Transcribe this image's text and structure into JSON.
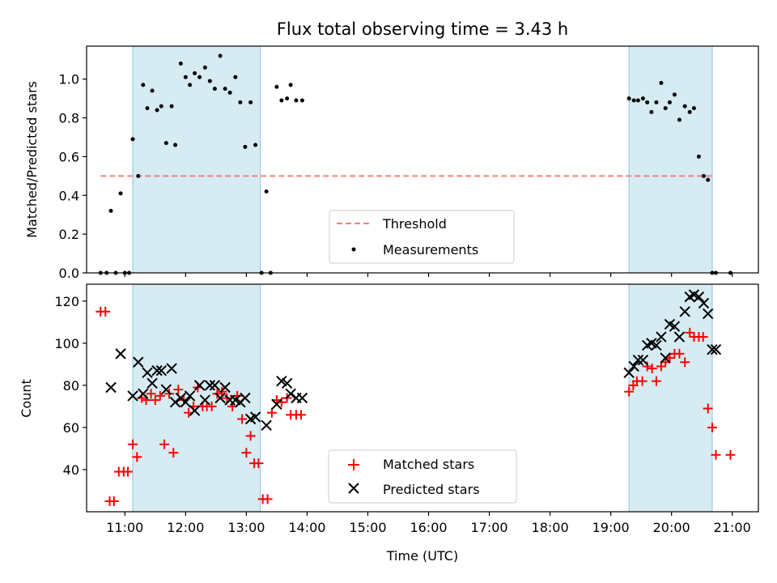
{
  "chart_data": [
    {
      "type": "scatter",
      "title": "Flux total observing time = 3.43 h",
      "xlabel": "",
      "ylabel": "Matched/Predicted stars",
      "xlim": [
        10.37,
        21.43
      ],
      "ylim": [
        0.0,
        1.17
      ],
      "yticks": [
        0.0,
        0.2,
        0.4,
        0.6,
        0.8,
        1.0
      ],
      "ytick_labels": [
        "0.0",
        "0.2",
        "0.4",
        "0.6",
        "0.8",
        "1.0"
      ],
      "shaded_intervals": [
        [
          11.13,
          13.23
        ],
        [
          19.3,
          20.67
        ]
      ],
      "threshold": {
        "name": "Threshold",
        "y": 0.5,
        "x_range": [
          10.6,
          20.7
        ],
        "color": "#f08080"
      },
      "legend_position": "lower-center",
      "series": [
        {
          "name": "Measurements",
          "color": "#000000",
          "marker": "dot",
          "x": [
            10.6,
            10.7,
            10.77,
            10.85,
            10.93,
            11.0,
            11.07,
            11.13,
            11.22,
            11.3,
            11.37,
            11.45,
            11.53,
            11.6,
            11.68,
            11.77,
            11.83,
            11.92,
            12.0,
            12.07,
            12.15,
            12.23,
            12.32,
            12.4,
            12.48,
            12.57,
            12.65,
            12.73,
            12.82,
            12.9,
            12.98,
            13.07,
            13.15,
            13.25,
            13.33,
            13.4,
            13.5,
            13.58,
            13.67,
            13.73,
            13.82,
            13.92,
            19.3,
            19.38,
            19.45,
            19.53,
            19.6,
            19.67,
            19.75,
            19.83,
            19.9,
            19.97,
            20.05,
            20.13,
            20.22,
            20.3,
            20.37,
            20.45,
            20.53,
            20.6,
            20.67,
            20.73,
            20.97
          ],
          "y": [
            0.0,
            0.0,
            0.32,
            0.0,
            0.41,
            0.0,
            0.0,
            0.69,
            0.5,
            0.97,
            0.85,
            0.94,
            0.84,
            0.86,
            0.67,
            0.86,
            0.66,
            1.08,
            1.01,
            0.97,
            1.03,
            1.01,
            1.06,
            0.99,
            0.95,
            1.12,
            0.95,
            0.93,
            1.01,
            0.88,
            0.65,
            0.88,
            0.66,
            0.0,
            0.42,
            0.0,
            0.96,
            0.89,
            0.9,
            0.97,
            0.89,
            0.89,
            0.9,
            0.89,
            0.89,
            0.9,
            0.88,
            0.83,
            0.88,
            0.98,
            0.85,
            0.88,
            0.92,
            0.79,
            0.86,
            0.83,
            0.85,
            0.6,
            0.5,
            0.48,
            0.0,
            0.0,
            0.0
          ]
        }
      ]
    },
    {
      "type": "scatter",
      "title": "",
      "xlabel": "Time (UTC)",
      "ylabel": "Count",
      "xlim": [
        10.37,
        21.43
      ],
      "ylim": [
        20,
        128
      ],
      "xticks": [
        11,
        12,
        13,
        14,
        15,
        16,
        17,
        18,
        19,
        20,
        21
      ],
      "xtick_labels": [
        "11:00",
        "12:00",
        "13:00",
        "14:00",
        "15:00",
        "16:00",
        "17:00",
        "18:00",
        "19:00",
        "20:00",
        "21:00"
      ],
      "yticks": [
        40,
        60,
        80,
        100,
        120
      ],
      "ytick_labels": [
        "40",
        "60",
        "80",
        "100",
        "120"
      ],
      "shaded_intervals": [
        [
          11.13,
          13.23
        ],
        [
          19.3,
          20.67
        ]
      ],
      "legend_position": "lower-center",
      "series": [
        {
          "name": "Matched stars",
          "color": "#ff0000",
          "marker": "plus",
          "x": [
            10.6,
            10.68,
            10.75,
            10.82,
            10.9,
            10.98,
            11.05,
            11.13,
            11.2,
            11.28,
            11.35,
            11.43,
            11.5,
            11.58,
            11.65,
            11.73,
            11.8,
            11.88,
            11.97,
            12.05,
            12.13,
            12.2,
            12.28,
            12.35,
            12.43,
            12.52,
            12.6,
            12.68,
            12.77,
            12.85,
            12.93,
            13.0,
            13.07,
            13.13,
            13.2,
            13.27,
            13.35,
            13.42,
            13.5,
            13.58,
            13.67,
            13.73,
            13.82,
            13.9,
            19.3,
            19.37,
            19.43,
            19.52,
            19.6,
            19.68,
            19.75,
            19.83,
            19.9,
            19.97,
            20.05,
            20.13,
            20.22,
            20.3,
            20.37,
            20.45,
            20.52,
            20.6,
            20.67,
            20.73,
            20.97
          ],
          "y": [
            115,
            115,
            25,
            25,
            39,
            39,
            39,
            52,
            46,
            74,
            73,
            76,
            73,
            75,
            52,
            76,
            48,
            78,
            73,
            67,
            70,
            79,
            70,
            70,
            70,
            76,
            77,
            74,
            70,
            75,
            64,
            48,
            56,
            43,
            43,
            26,
            26,
            67,
            73,
            72,
            74,
            66,
            66,
            66,
            77,
            80,
            82,
            82,
            89,
            88,
            82,
            89,
            91,
            93,
            95,
            95,
            91,
            105,
            103,
            103,
            103,
            69,
            60,
            47,
            47
          ]
        },
        {
          "name": "Predicted stars",
          "color": "#000000",
          "marker": "x",
          "x": [
            10.77,
            10.93,
            11.13,
            11.22,
            11.3,
            11.37,
            11.45,
            11.53,
            11.6,
            11.68,
            11.77,
            11.83,
            11.92,
            12.0,
            12.07,
            12.15,
            12.23,
            12.32,
            12.4,
            12.48,
            12.57,
            12.65,
            12.73,
            12.82,
            12.9,
            12.98,
            13.07,
            13.15,
            13.33,
            13.5,
            13.58,
            13.67,
            13.73,
            13.82,
            13.92,
            19.3,
            19.38,
            19.45,
            19.53,
            19.6,
            19.67,
            19.75,
            19.83,
            19.9,
            19.97,
            20.05,
            20.13,
            20.22,
            20.3,
            20.37,
            20.45,
            20.53,
            20.6,
            20.67,
            20.73
          ],
          "y": [
            79,
            95,
            75,
            91,
            76,
            86,
            81,
            87,
            87,
            78,
            88,
            72,
            74,
            72,
            75,
            68,
            80,
            73,
            80,
            80,
            74,
            79,
            73,
            73,
            72,
            74,
            64,
            65,
            61,
            71,
            82,
            81,
            76,
            74,
            74,
            86,
            89,
            92,
            92,
            99,
            100,
            99,
            103,
            93,
            109,
            108,
            103,
            115,
            122,
            123,
            122,
            119,
            114,
            97,
            97
          ]
        }
      ]
    }
  ]
}
